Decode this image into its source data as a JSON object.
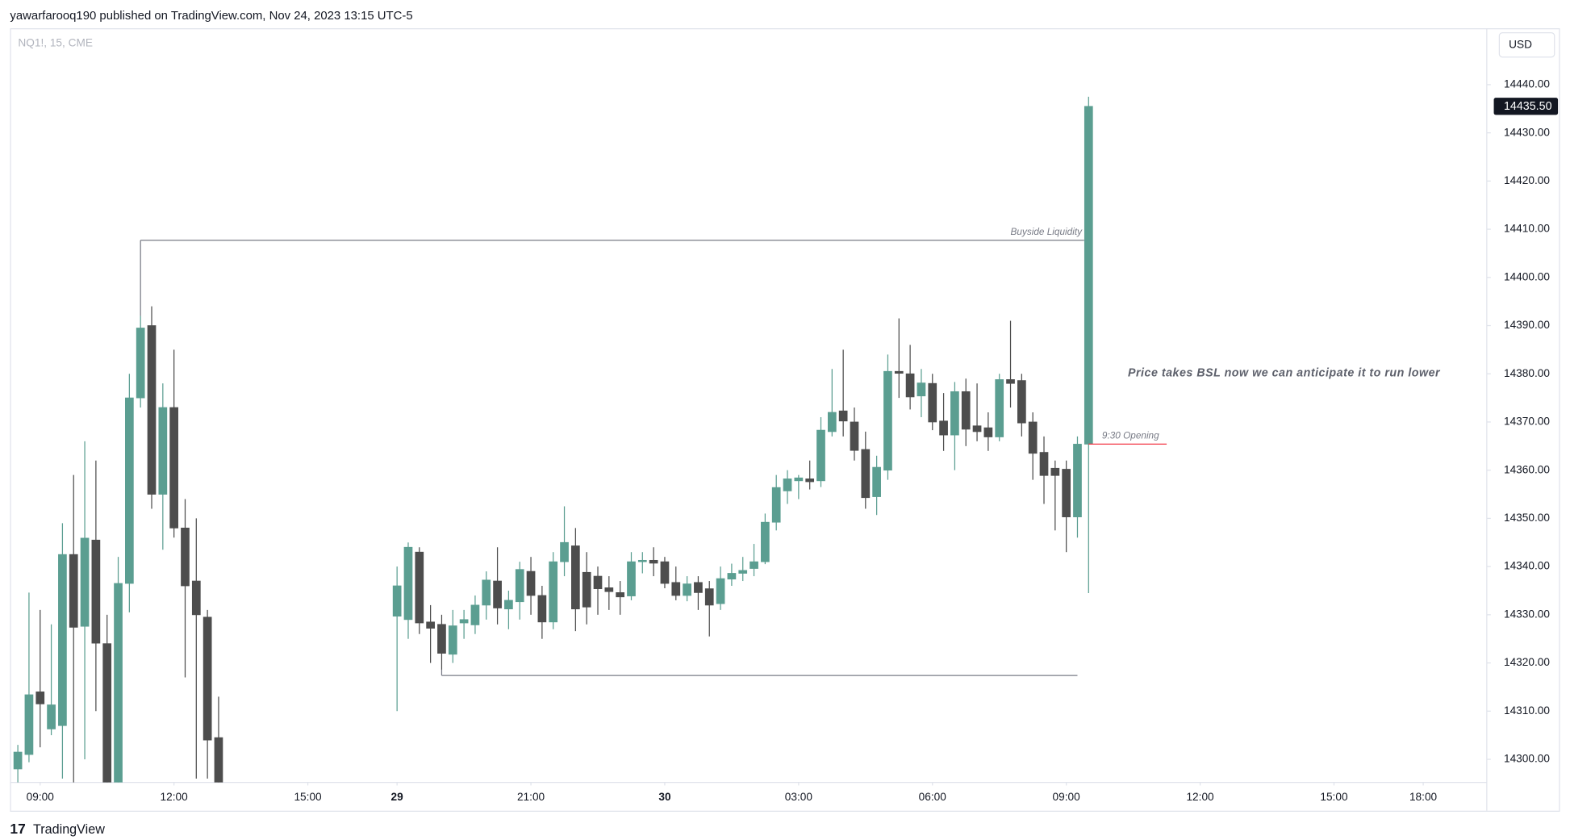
{
  "header": {
    "published": "yawarfarooq190 published on TradingView.com, Nov 24, 2023 13:15 UTC-5",
    "brand": "TradingView"
  },
  "chart_data": {
    "type": "candlestick",
    "symbol": "NQ1!, 15, CME",
    "currency": "USD",
    "up_color": "#5b9e91",
    "down_color": "#4d4d4d",
    "x": [
      0,
      1,
      2,
      3,
      4,
      5,
      6,
      7,
      8,
      9,
      10,
      11,
      12,
      13,
      14,
      15,
      16,
      17,
      18,
      34,
      35,
      36,
      37,
      38,
      39,
      40,
      41,
      42,
      43,
      44,
      45,
      46,
      47,
      48,
      49,
      50,
      51,
      52,
      53,
      54,
      55,
      56,
      57,
      58,
      59,
      60,
      61,
      62,
      63,
      64,
      65,
      66,
      67,
      68,
      69,
      70,
      71,
      72,
      73,
      74,
      75,
      76,
      77,
      78,
      79,
      80,
      81,
      82,
      83,
      84,
      85,
      86,
      87,
      88,
      89,
      90,
      91,
      92,
      93,
      94,
      95,
      96
    ],
    "open": [
      14298,
      14301,
      14314,
      14306.3,
      14307,
      14342.5,
      14327.6,
      14345.5,
      14324,
      14292,
      14336.5,
      14375,
      14390,
      14355,
      14373,
      14348,
      14337,
      14329.5,
      14304.5,
      14329.7,
      14329,
      14343,
      14328.5,
      14328,
      14321.8,
      14328.3,
      14327.9,
      14332,
      14337,
      14331.2,
      14332.7,
      14339,
      14334,
      14328.5,
      14341,
      14344.3,
      14338.8,
      14338,
      14335.6,
      14334.6,
      14333.9,
      14341,
      14341.3,
      14341,
      14336.7,
      14334,
      14336.7,
      14335.4,
      14332.3,
      14337.4,
      14338.6,
      14339.6,
      14341,
      14349.2,
      14355.7,
      14357.8,
      14358.2,
      14357.8,
      14368,
      14372.3,
      14370,
      14364.3,
      14354.5,
      14360,
      14380.5,
      14380,
      14375.4,
      14378,
      14370.2,
      14367.3,
      14376.3,
      14369.2,
      14368.8,
      14366.9,
      14378.8,
      14378.6,
      14370,
      14363.7,
      14360.4,
      14360.2,
      14350.3,
      14365.4
    ],
    "high": [
      14303,
      14334.6,
      14331,
      14328,
      14349,
      14359,
      14366,
      14362,
      14330,
      14342,
      14380,
      14392,
      14394,
      14378,
      14385,
      14354,
      14350,
      14331,
      14313,
      14340,
      14345,
      14344,
      14332,
      14330,
      14331,
      14331,
      14334,
      14339,
      14344,
      14335,
      14341,
      14342,
      14336,
      14343,
      14352.5,
      14348,
      14343,
      14340,
      14338,
      14337,
      14343,
      14343,
      14344,
      14342,
      14340,
      14338,
      14338,
      14337,
      14340,
      14340.6,
      14342,
      14344.7,
      14351,
      14359,
      14360,
      14359,
      14362,
      14371,
      14381,
      14385,
      14373,
      14368,
      14363,
      14384,
      14391.5,
      14386,
      14381,
      14380,
      14376,
      14378.3,
      14379,
      14378,
      14372,
      14380,
      14391,
      14380,
      14372,
      14367,
      14362,
      14362,
      14367,
      14437.5
    ],
    "low": [
      14295,
      14299.4,
      14302.5,
      14305,
      14296,
      14295,
      14300,
      14310,
      14290,
      14290,
      14330.5,
      14373,
      14352,
      14343.5,
      14346,
      14317,
      14296,
      14296,
      14290,
      14310,
      14325,
      14326,
      14320,
      14318.6,
      14320,
      14325,
      14326,
      14329,
      14328,
      14327,
      14329,
      14330,
      14325,
      14327,
      14338,
      14326.6,
      14328,
      14330,
      14331,
      14330,
      14333,
      14338.6,
      14338,
      14335.5,
      14333,
      14332.8,
      14331,
      14325.5,
      14331,
      14336,
      14337,
      14338,
      14340.5,
      14347.5,
      14353,
      14354,
      14356,
      14356.5,
      14367,
      14367,
      14362,
      14352,
      14350.7,
      14358,
      14375,
      14372.6,
      14371,
      14368.3,
      14364,
      14360,
      14365,
      14366,
      14364,
      14366,
      14373,
      14367,
      14358,
      14353,
      14347.5,
      14343,
      14346,
      14334.5
    ],
    "close": [
      14301.5,
      14313.4,
      14311.5,
      14311.3,
      14342.5,
      14327.4,
      14345.9,
      14324.1,
      14294,
      14336.5,
      14375,
      14389.5,
      14355,
      14373,
      14348,
      14336,
      14330,
      14304,
      14294,
      14336,
      14344,
      14328.3,
      14327.2,
      14322,
      14327.7,
      14329,
      14332,
      14337.2,
      14331.4,
      14333,
      14339.4,
      14334,
      14328.5,
      14341,
      14345,
      14331.2,
      14331.6,
      14335.4,
      14334.8,
      14333.7,
      14341,
      14341.3,
      14340.7,
      14336.5,
      14334,
      14336.4,
      14334.6,
      14332,
      14337.5,
      14338.6,
      14339.2,
      14341,
      14349.2,
      14356.4,
      14358.2,
      14358.4,
      14357.6,
      14368.3,
      14372,
      14370.2,
      14364.1,
      14354.3,
      14360.6,
      14380.5,
      14380.1,
      14375.2,
      14378.1,
      14370,
      14367.3,
      14376.3,
      14368.5,
      14368,
      14366.9,
      14378.8,
      14378,
      14369.8,
      14363.5,
      14358.9,
      14358.9,
      14350.3,
      14365.4,
      14435.5
    ],
    "xlim": [
      -0.7,
      131.7
    ],
    "xticks": [
      {
        "value": 2,
        "label": "09:00"
      },
      {
        "value": 14,
        "label": "12:00"
      },
      {
        "value": 26,
        "label": "15:00"
      },
      {
        "value": 34,
        "label": "29"
      },
      {
        "value": 46,
        "label": "21:00"
      },
      {
        "value": 58,
        "label": "30"
      },
      {
        "value": 70,
        "label": "03:00"
      },
      {
        "value": 82,
        "label": "06:00"
      },
      {
        "value": 94,
        "label": "09:00"
      },
      {
        "value": 106,
        "label": "12:00"
      },
      {
        "value": 118,
        "label": "15:00"
      },
      {
        "value": 126,
        "label": "18:00"
      }
    ],
    "ylim": [
      14295.2,
      14451.7
    ],
    "yticks": [
      {
        "value": 14300,
        "label": "14300.00"
      },
      {
        "value": 14310,
        "label": "14310.00"
      },
      {
        "value": 14320,
        "label": "14320.00"
      },
      {
        "value": 14330,
        "label": "14330.00"
      },
      {
        "value": 14340,
        "label": "14340.00"
      },
      {
        "value": 14350,
        "label": "14350.00"
      },
      {
        "value": 14360,
        "label": "14360.00"
      },
      {
        "value": 14370,
        "label": "14370.00"
      },
      {
        "value": 14380,
        "label": "14380.00"
      },
      {
        "value": 14390,
        "label": "14390.00"
      },
      {
        "value": 14400,
        "label": "14400.00"
      },
      {
        "value": 14410,
        "label": "14410.00"
      },
      {
        "value": 14420,
        "label": "14420.00"
      },
      {
        "value": 14430,
        "label": "14430.00"
      },
      {
        "value": 14440,
        "label": "14440.00"
      }
    ],
    "last_price": {
      "value": 14435.5,
      "label": "14435.50"
    },
    "levels": [
      {
        "label": "Buyside Liquidity",
        "value": 14407.7,
        "color": "#787b86"
      },
      {
        "label": "9:30 Opening",
        "value": 14365.4,
        "color": "#f23645"
      },
      {
        "value": 14317.4,
        "color": "#787b86"
      }
    ],
    "annotation": "Price takes BSL now we can anticipate it to run lower"
  }
}
